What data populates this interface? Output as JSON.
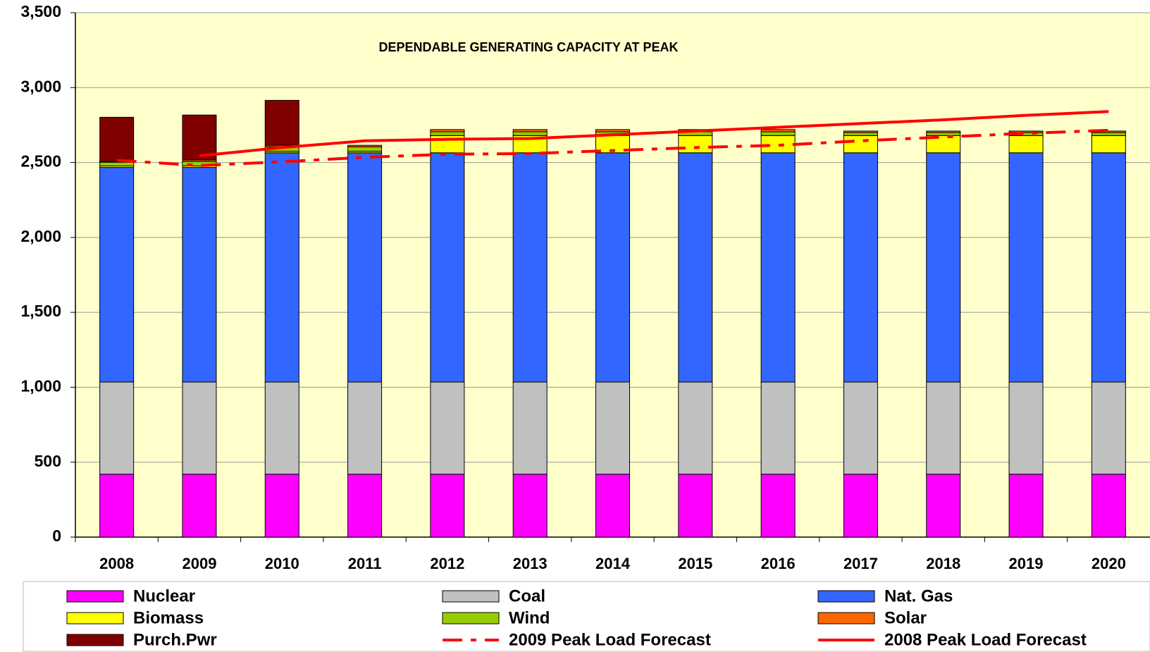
{
  "chart_data": {
    "type": "bar",
    "stacked": true,
    "title": "DEPENDABLE GENERATING CAPACITY AT PEAK",
    "categories": [
      "2008",
      "2009",
      "2010",
      "2011",
      "2012",
      "2013",
      "2014",
      "2015",
      "2016",
      "2017",
      "2018",
      "2019",
      "2020"
    ],
    "series": [
      {
        "name": "Nuclear",
        "color": "#ff00ff",
        "values": [
          420,
          420,
          420,
          420,
          420,
          420,
          420,
          420,
          420,
          420,
          420,
          420,
          420
        ]
      },
      {
        "name": "Coal",
        "color": "#c0c0c0",
        "values": [
          615,
          615,
          615,
          615,
          615,
          615,
          615,
          615,
          615,
          615,
          615,
          615,
          615
        ]
      },
      {
        "name": "Nat. Gas",
        "color": "#3366ff",
        "values": [
          1432,
          1432,
          1530,
          1530,
          1530,
          1530,
          1530,
          1530,
          1530,
          1530,
          1530,
          1530,
          1530
        ]
      },
      {
        "name": "Biomass",
        "color": "#ffff00",
        "values": [
          10,
          10,
          10,
          10,
          115,
          115,
          115,
          115,
          115,
          115,
          115,
          115,
          115
        ]
      },
      {
        "name": "Wind",
        "color": "#99cc00",
        "values": [
          25,
          30,
          30,
          30,
          25,
          25,
          25,
          25,
          25,
          20,
          20,
          20,
          20
        ]
      },
      {
        "name": "Solar",
        "color": "#ff6600",
        "values": [
          5,
          10,
          10,
          10,
          15,
          15,
          15,
          15,
          15,
          10,
          10,
          10,
          10
        ]
      },
      {
        "name": "Purch.Pwr",
        "color": "#800000",
        "values": [
          295,
          300,
          300,
          0,
          0,
          0,
          0,
          0,
          0,
          0,
          0,
          0,
          0
        ]
      },
      {
        "name": "2009 Peak Load Forecast",
        "type": "line",
        "dashed": true,
        "color": "#ff0000",
        "values": [
          2515,
          2480,
          2505,
          2535,
          2555,
          2560,
          2580,
          2600,
          2615,
          2645,
          2670,
          2695,
          2715
        ]
      },
      {
        "name": "2008 Peak Load Forecast",
        "type": "line",
        "dashed": false,
        "color": "#ff0000",
        "values": [
          null,
          2545,
          2600,
          2645,
          2655,
          2660,
          2685,
          2710,
          2735,
          2760,
          2785,
          2815,
          2840
        ]
      }
    ],
    "ylim": [
      0,
      3500
    ],
    "yticks": [
      0,
      500,
      {
        "value": 1000,
        "label": "1,000"
      },
      {
        "value": 1500,
        "label": "1,500"
      },
      {
        "value": 2000,
        "label": "2,000"
      },
      {
        "value": 2500,
        "label": "2,500"
      },
      {
        "value": 3000,
        "label": "3,000"
      },
      {
        "value": 3500,
        "label": "3,500"
      }
    ],
    "grid": true,
    "background": "#ffffcc",
    "legend": "bottom"
  }
}
